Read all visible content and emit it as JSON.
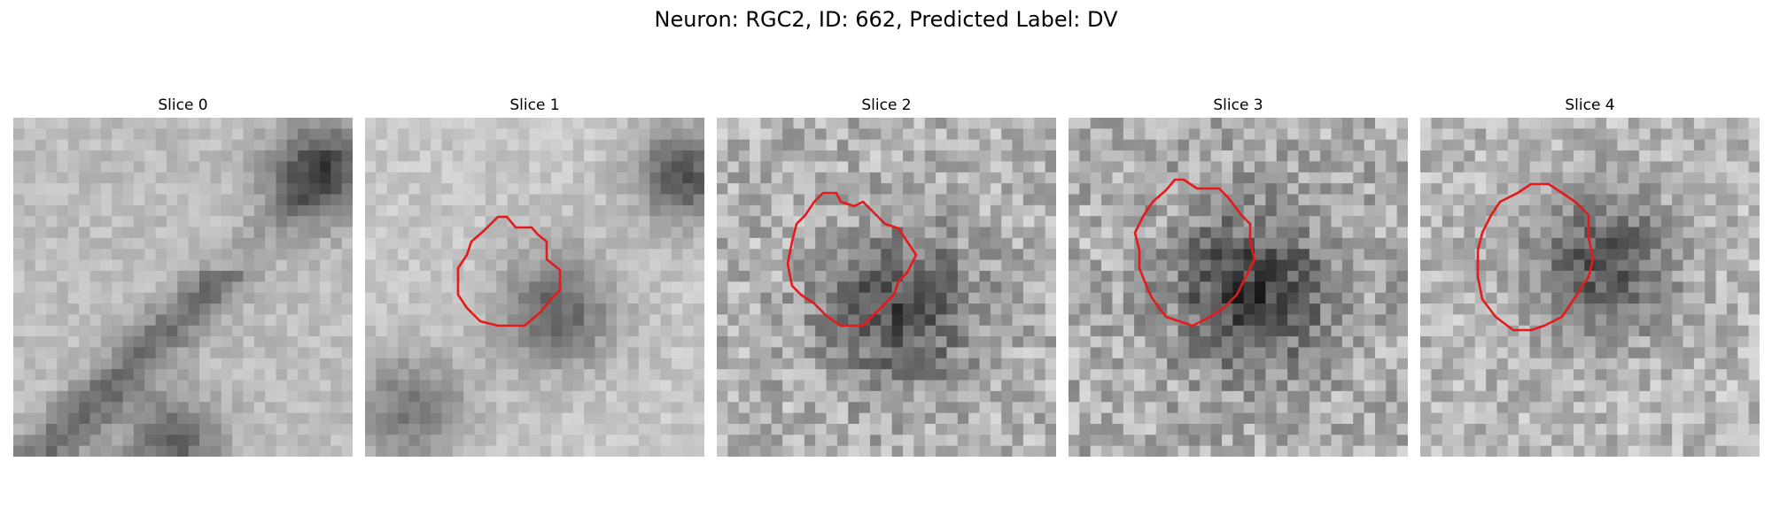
{
  "figure": {
    "title": "Neuron: RGC2, ID: 662, Predicted Label: DV"
  },
  "panels": [
    {
      "title": "Slice 0",
      "has_contour": false
    },
    {
      "title": "Slice 1",
      "has_contour": true
    },
    {
      "title": "Slice 2",
      "has_contour": true
    },
    {
      "title": "Slice 3",
      "has_contour": true
    },
    {
      "title": "Slice 4",
      "has_contour": true
    }
  ],
  "image": {
    "colormap": "grayscale",
    "grid": "pixelated",
    "contour_color": "#e41a1c"
  }
}
